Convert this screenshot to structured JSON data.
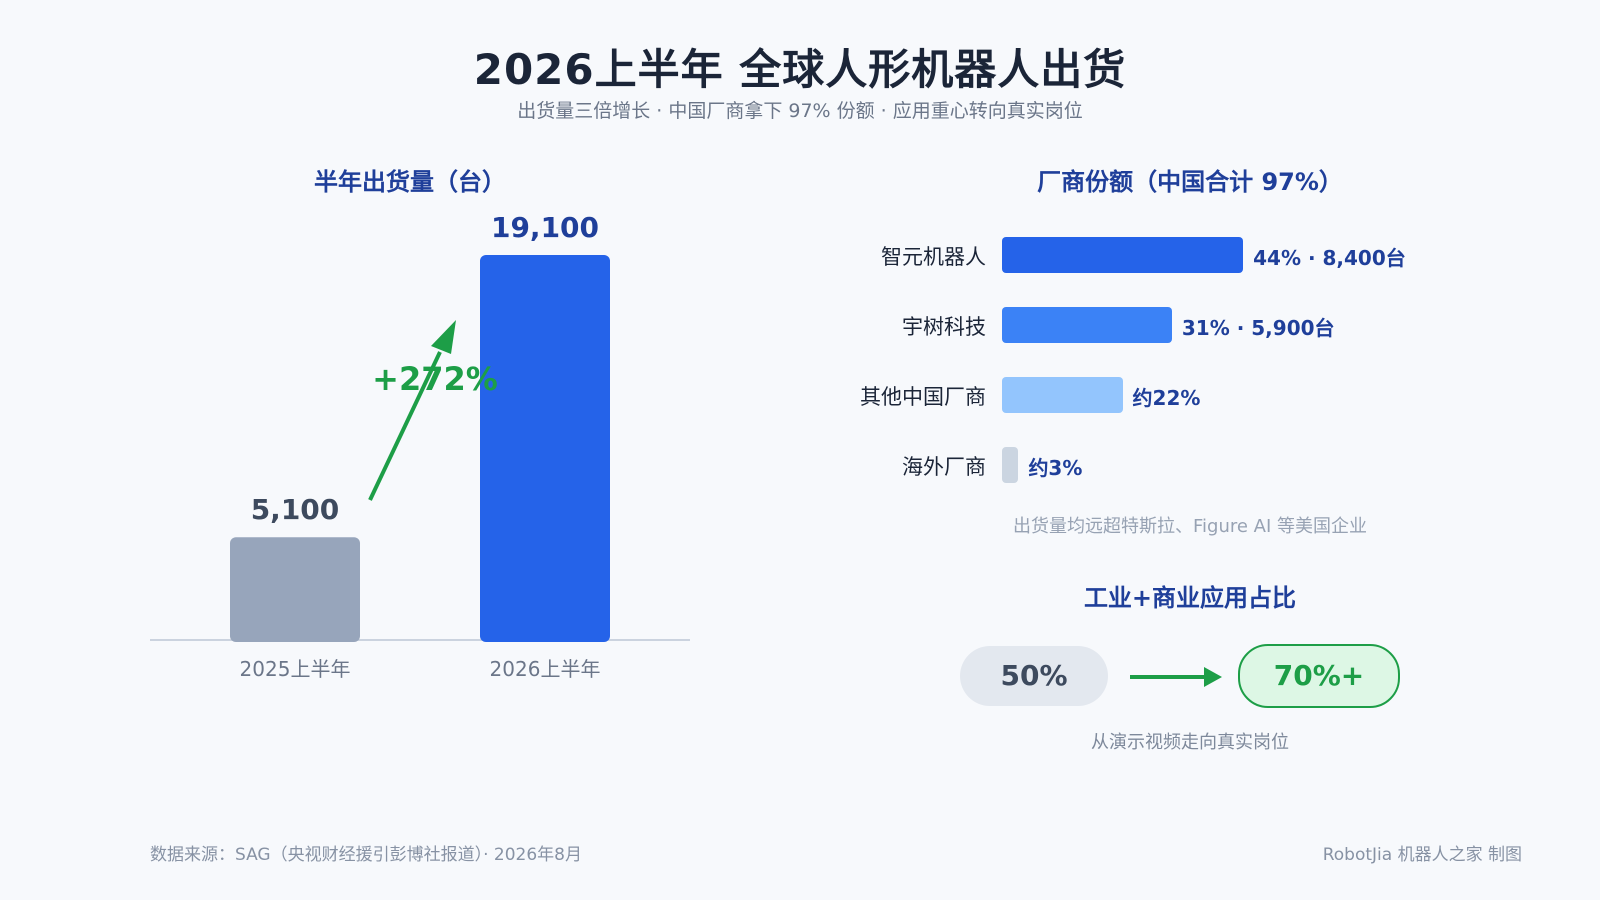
{
  "header": {
    "title": "2026上半年 全球人形机器人出货",
    "subtitle": "出货量三倍增长 · 中国厂商拿下 97% 份额 · 应用重心转向真实岗位"
  },
  "chart_data": [
    {
      "type": "bar",
      "title": "半年出货量（台）",
      "categories": [
        "2025上半年",
        "2026上半年"
      ],
      "values": [
        5100,
        19100
      ],
      "value_labels": [
        "5,100",
        "19,100"
      ],
      "colors": [
        "#97a5bb",
        "#2563e9"
      ],
      "annotation": {
        "text": "+272%",
        "color": "#1d9e47"
      },
      "ylim": [
        0,
        19100
      ]
    },
    {
      "type": "bar",
      "orientation": "horizontal",
      "title": "厂商份额（中国合计 97%）",
      "categories": [
        "智元机器人",
        "宇树科技",
        "其他中国厂商",
        "海外厂商"
      ],
      "values": [
        44,
        31,
        22,
        3
      ],
      "value_labels": [
        "44% · 8,400台",
        "31% · 5,900台",
        "约22%",
        "约3%"
      ],
      "colors": [
        "#2563e9",
        "#3b82f6",
        "#93c5fd",
        "#cbd5e1"
      ],
      "note": "出货量均远超特斯拉、Figure AI 等美国企业"
    }
  ],
  "application": {
    "title": "工业+商业应用占比",
    "from": "50%",
    "to": "70%+",
    "note": "从演示视频走向真实岗位"
  },
  "footer": {
    "source": "数据来源：SAG（央视财经援引彭博社报道）· 2026年8月",
    "credit": "RobotJia 机器人之家 制图"
  }
}
